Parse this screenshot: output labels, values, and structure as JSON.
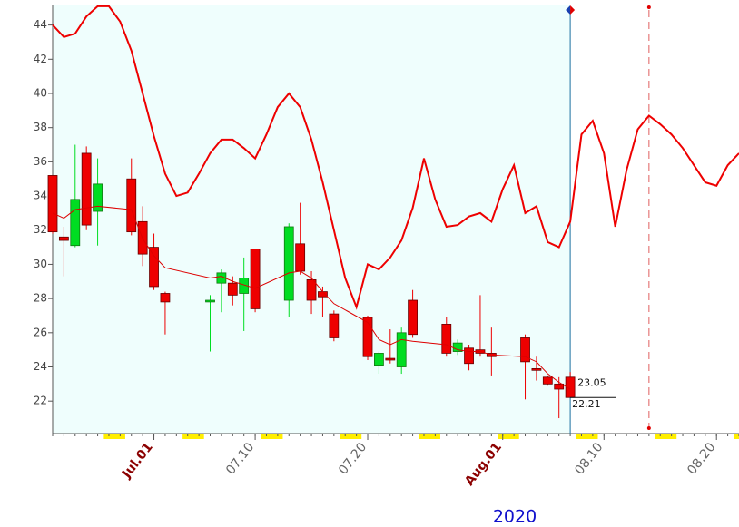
{
  "chart_data": {
    "type": "candlestick",
    "x": [
      0,
      1,
      2,
      3,
      4,
      7,
      8,
      9,
      10,
      14,
      15,
      16,
      17,
      18,
      21,
      22,
      23,
      24,
      25,
      28,
      29,
      30,
      31,
      32,
      35,
      36,
      37,
      38,
      39,
      42,
      43,
      44,
      45,
      46
    ],
    "open": [
      35.2,
      31.6,
      31.1,
      36.5,
      33.1,
      35,
      32.5,
      31,
      28.3,
      27.8,
      28.9,
      28.9,
      28.3,
      30.9,
      27.9,
      31.2,
      29.1,
      28.4,
      27.1,
      26.9,
      24.1,
      24.5,
      24,
      27.9,
      26.5,
      24.9,
      25.1,
      25,
      24.8,
      25.7,
      23.9,
      23.4,
      23,
      23.4
    ],
    "high": [
      35.2,
      32.2,
      37,
      36.9,
      36.2,
      36.2,
      33.4,
      31.8,
      28.4,
      28.2,
      29.7,
      29.3,
      30.4,
      30.9,
      32.4,
      33.6,
      29.6,
      28.7,
      27.3,
      27,
      24.9,
      26.2,
      26.3,
      28.5,
      26.9,
      25.6,
      25.3,
      28.2,
      26.3,
      25.9,
      24.6,
      23.5,
      23.4,
      23.7
    ],
    "low": [
      31.8,
      29.3,
      31,
      32,
      31.1,
      31.7,
      29.9,
      28.5,
      25.9,
      24.9,
      27.2,
      27.6,
      26.1,
      27.2,
      26.9,
      29.4,
      27.1,
      26.9,
      25.5,
      24.4,
      23.6,
      24.2,
      23.6,
      25.7,
      24.6,
      24.7,
      23.8,
      24.6,
      23.5,
      22.1,
      23.2,
      22.9,
      21,
      22.2
    ],
    "close": [
      31.9,
      31.4,
      33.8,
      32.3,
      34.7,
      31.9,
      30.6,
      28.7,
      27.8,
      27.9,
      29.5,
      28.2,
      29.2,
      27.4,
      32.2,
      29.6,
      27.9,
      28.1,
      25.7,
      24.6,
      24.8,
      24.4,
      26,
      25.9,
      24.8,
      25.4,
      24.2,
      24.8,
      24.6,
      24.3,
      23.8,
      23,
      22.7,
      22.21
    ],
    "up_color": "#00dd22",
    "down_color": "#ee0000",
    "lines": [
      {
        "color": "#dd0000",
        "width": 1,
        "x": [
          0,
          1,
          2,
          3,
          4,
          7,
          8,
          9,
          10,
          14,
          15,
          16,
          17,
          18,
          21,
          22,
          23,
          24,
          25,
          28,
          29,
          30,
          31,
          32,
          35,
          36,
          37,
          38,
          39,
          42,
          43,
          44,
          45,
          46
        ],
        "values": [
          33,
          32.7,
          33.2,
          33.3,
          33.4,
          33.2,
          31.5,
          30.5,
          29.8,
          29.2,
          29.3,
          29,
          28.8,
          28.6,
          29.5,
          29.6,
          29.2,
          28.4,
          27.7,
          26.6,
          25.6,
          25.3,
          25.6,
          25.5,
          25.3,
          25,
          24.9,
          24.9,
          24.7,
          24.6,
          24.3,
          23.6,
          23.1,
          22.7
        ]
      },
      {
        "color": "#ee0000",
        "width": 2,
        "x": [
          0,
          1,
          2,
          3,
          4,
          5,
          6,
          7,
          8,
          9,
          10,
          11,
          12,
          13,
          14,
          15,
          16,
          17,
          18,
          19,
          20,
          21,
          22,
          23,
          24,
          25,
          26,
          27,
          28,
          29,
          30,
          31,
          32,
          33,
          34,
          35,
          36,
          37,
          38,
          39,
          40,
          41,
          42,
          43,
          44,
          45,
          46,
          47,
          48,
          49,
          50,
          51,
          52,
          53,
          54,
          55,
          56,
          57,
          58,
          59,
          60,
          61
        ],
        "values": [
          44,
          43.3,
          43.5,
          44.5,
          45.1,
          45.1,
          44.2,
          42.5,
          40,
          37.5,
          35.3,
          34,
          34.2,
          35.3,
          36.5,
          37.3,
          37.3,
          36.8,
          36.2,
          37.6,
          39.2,
          40,
          39.2,
          37.3,
          34.8,
          32,
          29.2,
          27.5,
          30,
          29.7,
          30.4,
          31.4,
          33.3,
          36.2,
          33.8,
          32.2,
          32.3,
          32.8,
          33,
          32.5,
          34.4,
          35.8,
          33,
          33.4,
          31.3,
          31,
          32.5,
          37.6,
          38.4,
          36.5,
          32.2,
          35.5,
          37.9,
          38.7,
          38.2,
          37.6,
          36.8,
          35.8,
          34.8,
          34.6,
          35.8,
          36.5
        ]
      }
    ],
    "annotations": [
      {
        "x": 46,
        "value": 23.05
      },
      {
        "x": 46,
        "value": 22.21
      }
    ],
    "vlines": [
      {
        "x": 46,
        "color": "#1a6fa0",
        "dash": false
      },
      {
        "x": 53,
        "color": "#e06060",
        "dash": true
      }
    ],
    "shade": {
      "from": 0,
      "to": 46,
      "color": "#effefd"
    },
    "weekend_color": "#ffee00",
    "xlim": [
      0,
      61
    ],
    "ylim": [
      20.1,
      45.2
    ],
    "yticks": [
      22,
      24,
      26,
      28,
      30,
      32,
      34,
      36,
      38,
      40,
      42,
      44
    ],
    "xticks": [
      {
        "value": 9,
        "label": "Jul.01"
      },
      {
        "value": 18,
        "label": "07.10"
      },
      {
        "value": 28,
        "label": "07.20"
      },
      {
        "value": 40,
        "label": "Aug.01"
      },
      {
        "value": 49,
        "label": "08.10"
      },
      {
        "value": 59,
        "label": "08.20"
      }
    ],
    "xtick_label_colors": [
      "#8b0000",
      "#666666",
      "#666666",
      "#8b0000",
      "#666666",
      "#666666"
    ],
    "xlabel": "2020"
  }
}
